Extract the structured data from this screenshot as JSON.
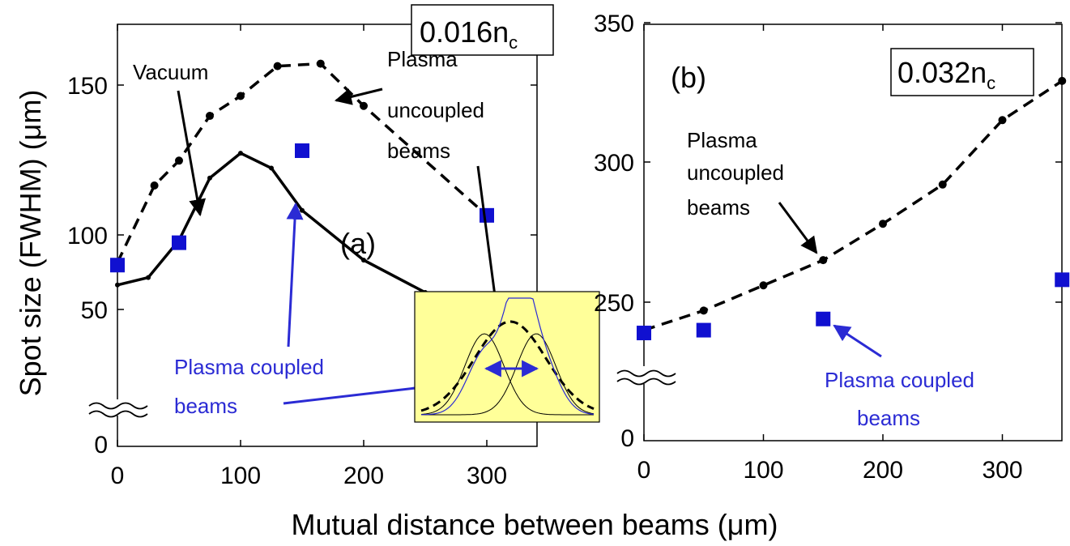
{
  "colors": {
    "marker": "#1010d0",
    "annotation": "#2b2bd4",
    "inset_bg": "#ffff99",
    "line": "#000000"
  },
  "xlabel": "Mutual distance between beams (μm)",
  "ylabel": "Spot size (FWHM) (μm)",
  "chart_data": [
    {
      "type": "line",
      "panel": "(a)",
      "box_label_main": "0.016n",
      "box_label_sub": "c",
      "xlim": [
        0,
        350
      ],
      "ylim": [
        0,
        170
      ],
      "xticks": [
        "0",
        "100",
        "200",
        "300"
      ],
      "yticks": [
        "0",
        "50",
        "100",
        "150"
      ],
      "axis_break": true,
      "series": [
        {
          "name": "Vacuum",
          "style": "solid",
          "x": [
            0,
            25,
            50,
            75,
            100,
            125,
            150,
            200,
            250
          ],
          "y": [
            60,
            63,
            78,
            103,
            113,
            107,
            90,
            70,
            57
          ]
        },
        {
          "name": "Plasma uncoupled beams",
          "style": "dashed",
          "x": [
            0,
            30,
            50,
            75,
            100,
            130,
            165,
            200,
            300
          ],
          "y": [
            69,
            100,
            110,
            128,
            136,
            148,
            149,
            132,
            88
          ]
        },
        {
          "name": "Plasma coupled beams",
          "style": "markers",
          "x": [
            0,
            50,
            150,
            300
          ],
          "y": [
            68,
            77,
            114,
            88
          ]
        }
      ],
      "annotations": {
        "vacuum": "Vacuum",
        "uncoupled_1": "Plasma",
        "uncoupled_2": "uncoupled",
        "uncoupled_3": "beams",
        "coupled_1": "Plasma coupled",
        "coupled_2": "beams"
      }
    },
    {
      "type": "line",
      "panel": "(b)",
      "box_label_main": "0.032n",
      "box_label_sub": "c",
      "xlim": [
        0,
        350
      ],
      "ylim": [
        200,
        350
      ],
      "xticks": [
        "0",
        "100",
        "200",
        "300"
      ],
      "yticks": [
        "0",
        "250",
        "300",
        "350"
      ],
      "axis_break": true,
      "series": [
        {
          "name": "Plasma uncoupled beams",
          "style": "dashed",
          "x": [
            0,
            50,
            100,
            150,
            200,
            250,
            300,
            350
          ],
          "y": [
            240,
            247,
            256,
            265,
            278,
            292,
            315,
            329
          ]
        },
        {
          "name": "Plasma coupled beams",
          "style": "markers",
          "x": [
            0,
            50,
            150,
            350
          ],
          "y": [
            239,
            240,
            244,
            258
          ]
        }
      ],
      "annotations": {
        "uncoupled_1": "Plasma",
        "uncoupled_2": "uncoupled",
        "uncoupled_3": "beams",
        "coupled_1": "Plasma coupled",
        "coupled_2": "beams"
      }
    }
  ]
}
